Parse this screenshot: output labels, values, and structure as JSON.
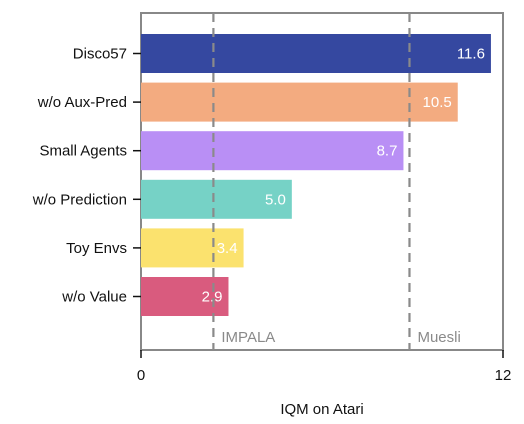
{
  "chart_data": {
    "type": "bar",
    "orientation": "horizontal",
    "categories": [
      "Disco57",
      "w/o Aux-Pred",
      "Small Agents",
      "w/o Prediction",
      "Toy Envs",
      "w/o Value"
    ],
    "values": [
      11.6,
      10.5,
      8.7,
      5.0,
      3.4,
      2.9
    ],
    "value_labels": [
      "11.6",
      "10.5",
      "8.7",
      "5.0",
      "3.4",
      "2.9"
    ],
    "colors": [
      "#3548a0",
      "#f3ab80",
      "#b98ff5",
      "#76d2c6",
      "#fbe26e",
      "#d95b7e"
    ],
    "xlabel": "IQM on Atari",
    "ylabel": "",
    "xlim": [
      0,
      12
    ],
    "x_ticks": [
      "0",
      "12"
    ],
    "reference_lines": [
      {
        "label": "IMPALA",
        "value": 2.4,
        "style": "dashed",
        "color": "#8a8a8a"
      },
      {
        "label": "Muesli",
        "value": 8.9,
        "style": "dashed",
        "color": "#8a8a8a"
      }
    ],
    "grid": false,
    "legend": "none"
  }
}
